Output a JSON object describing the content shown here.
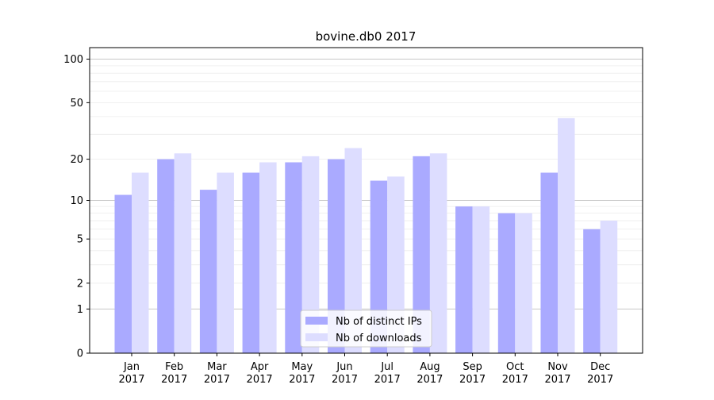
{
  "chart_data": {
    "type": "bar",
    "title": "bovine.db0 2017",
    "xlabel": "",
    "ylabel": "",
    "yscale": "log(1+y)",
    "ylim": [
      0,
      120
    ],
    "yticks": [
      0,
      1,
      2,
      5,
      10,
      20,
      50,
      100
    ],
    "categories": [
      "Jan\n2017",
      "Feb\n2017",
      "Mar\n2017",
      "Apr\n2017",
      "May\n2017",
      "Jun\n2017",
      "Jul\n2017",
      "Aug\n2017",
      "Sep\n2017",
      "Oct\n2017",
      "Nov\n2017",
      "Dec\n2017"
    ],
    "series": [
      {
        "name": "Nb of distinct IPs",
        "color": "#aaaaff",
        "values": [
          11,
          20,
          12,
          16,
          19,
          20,
          14,
          21,
          9,
          8,
          16,
          6
        ]
      },
      {
        "name": "Nb of downloads",
        "color": "#ddddff",
        "values": [
          16,
          22,
          16,
          19,
          21,
          24,
          15,
          22,
          9,
          8,
          39,
          7
        ]
      }
    ],
    "grid": true,
    "legend_position": "bottom-center"
  }
}
